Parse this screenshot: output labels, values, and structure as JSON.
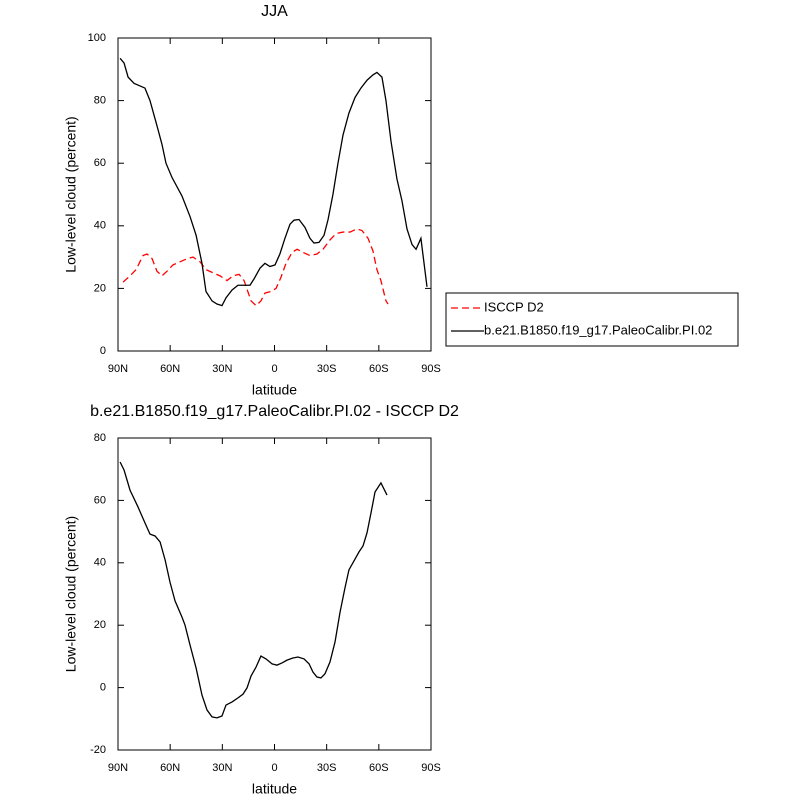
{
  "chart_data": [
    {
      "type": "line",
      "title": "JJA",
      "xlabel": "latitude",
      "ylabel": "Low-level cloud (percent)",
      "xlim": [
        90,
        -90
      ],
      "xticks": [
        {
          "value": 90,
          "label": "90N"
        },
        {
          "value": 60,
          "label": "60N"
        },
        {
          "value": 30,
          "label": "30N"
        },
        0,
        {
          "value": -30,
          "label": "30S"
        },
        {
          "value": -60,
          "label": "60S"
        },
        {
          "value": -90,
          "label": "90S"
        }
      ],
      "ylim": [
        0,
        100
      ],
      "yticks": [
        0,
        20,
        40,
        60,
        80,
        100
      ],
      "legend": "right",
      "series": [
        {
          "name": "ISCCP D2",
          "color": "#ff0000",
          "line_style": "dashed",
          "x": [
            87.1,
            83.1,
            79.6,
            75.6,
            73.3,
            70.4,
            67.6,
            64.7,
            61.8,
            58.4,
            54.3,
            50.3,
            46.9,
            42.8,
            39.4,
            35.4,
            31.3,
            27.3,
            23.9,
            20.4,
            17.5,
            13.5,
            10.6,
            7.8,
            5.5,
            2,
            -0.9,
            -3.7,
            -6.6,
            -10.1,
            -13,
            -16.4,
            -20.4,
            -24.4,
            -27.9,
            -31.9,
            -35.4,
            -39.4,
            -43.4,
            -47.4,
            -50.3,
            -53.8,
            -56.6,
            -58.9,
            -61.2,
            -64.1,
            -65.3
          ],
          "values": [
            22,
            24,
            26,
            30.5,
            31,
            29.5,
            25.5,
            24,
            25.5,
            27.5,
            28.5,
            29.5,
            30,
            28.5,
            26,
            25,
            24,
            22.5,
            24,
            24.5,
            22.5,
            16,
            14.5,
            16,
            18.5,
            19,
            20,
            23.5,
            28,
            31.5,
            32.5,
            31.5,
            30.5,
            31,
            32.5,
            35.5,
            37.5,
            38,
            38,
            39,
            38.5,
            36,
            32,
            26,
            22.5,
            16,
            15
          ]
        },
        {
          "name": "b.e21.B1850.f19_g17.PaleoCalibr.PI.02",
          "color": "#000000",
          "line_style": "solid",
          "x": [
            88.8,
            86.5,
            84.2,
            80.8,
            74.5,
            71.6,
            67.6,
            64.7,
            62.4,
            59,
            53.2,
            48.6,
            45.1,
            41.7,
            39.4,
            35.9,
            33.1,
            30.2,
            27.9,
            24.4,
            21,
            17.5,
            14.1,
            11.8,
            8.3,
            5.5,
            2.6,
            -0.3,
            -3.1,
            -6,
            -8.9,
            -11.2,
            -14.1,
            -17.5,
            -20.4,
            -22.7,
            -25.6,
            -28.5,
            -30.8,
            -33.6,
            -36.5,
            -39.4,
            -42.8,
            -46.3,
            -49.7,
            -53.2,
            -56.6,
            -58.9,
            -61.8,
            -64.1,
            -67,
            -70.4,
            -73.3,
            -76.2,
            -79.1,
            -81.4,
            -84.2,
            -87.7
          ],
          "values": [
            93.5,
            92,
            87.5,
            85.5,
            84,
            80,
            72,
            66,
            60,
            55.5,
            49.5,
            43,
            37,
            28,
            19,
            16,
            15,
            14.5,
            17,
            19.5,
            21,
            21,
            21,
            23,
            26.5,
            28,
            27,
            27.5,
            31,
            36,
            40.5,
            41.8,
            42,
            39.5,
            36,
            34.5,
            34.7,
            37,
            42,
            50,
            60,
            69,
            76,
            81,
            84,
            86.5,
            88.2,
            89,
            87.5,
            80,
            67,
            55,
            48,
            39,
            34,
            32.5,
            36,
            20.5
          ]
        }
      ]
    },
    {
      "type": "line",
      "title": "b.e21.B1850.f19_g17.PaleoCalibr.PI.02 - ISCCP D2",
      "xlabel": "latitude",
      "ylabel": "Low-level cloud (percent)",
      "xlim": [
        90,
        -90
      ],
      "xticks": [
        {
          "value": 90,
          "label": "90N"
        },
        {
          "value": 60,
          "label": "60N"
        },
        {
          "value": 30,
          "label": "30N"
        },
        0,
        {
          "value": -30,
          "label": "30S"
        },
        {
          "value": -60,
          "label": "60S"
        },
        {
          "value": -90,
          "label": "90S"
        }
      ],
      "ylim": [
        -20,
        80
      ],
      "yticks": [
        -20,
        0,
        20,
        40,
        60,
        80
      ],
      "series": [
        {
          "color": "#000000",
          "line_style": "solid",
          "x": [
            88.8,
            86.5,
            83.1,
            78.5,
            74.5,
            71.6,
            68.7,
            65.8,
            62.9,
            60.1,
            57.2,
            53.2,
            51.5,
            48.6,
            45.1,
            41.7,
            38.8,
            35.9,
            33.1,
            30.2,
            27.9,
            24.4,
            21,
            18.1,
            15.8,
            13.5,
            10.6,
            7.8,
            4.9,
            1.4,
            -1.4,
            -4.3,
            -7.2,
            -10.6,
            -13.5,
            -17,
            -19.9,
            -22.1,
            -24.4,
            -26.7,
            -29,
            -31.9,
            -34.8,
            -37.7,
            -40.5,
            -42.8,
            -45.7,
            -48.6,
            -50.9,
            -53.2,
            -55.5,
            -57.8,
            -61.2,
            -64.7
          ],
          "values": [
            72.3,
            69.7,
            63.3,
            57.9,
            52.8,
            49.2,
            48.6,
            46.7,
            40.9,
            33.8,
            27.8,
            22.6,
            20.1,
            13.7,
            6.3,
            -2.4,
            -7.2,
            -9.4,
            -9.7,
            -9.1,
            -5.6,
            -4.6,
            -3.3,
            -2.1,
            -0.1,
            3.7,
            6.6,
            10.1,
            9.2,
            7.6,
            7.2,
            7.9,
            8.8,
            9.5,
            9.8,
            9.2,
            7.6,
            5,
            3.4,
            3.1,
            4.4,
            8.2,
            14.6,
            24.2,
            31.9,
            37.7,
            40.6,
            43.5,
            45.4,
            49.6,
            56,
            62.7,
            65.6,
            61.7
          ]
        }
      ]
    }
  ]
}
